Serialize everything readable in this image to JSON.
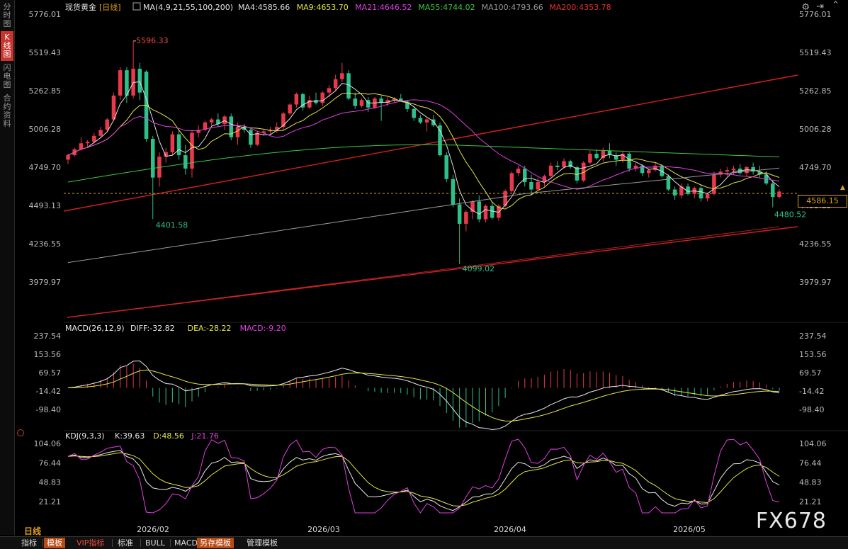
{
  "sidebar": {
    "tabs": [
      "分时图",
      "K线图",
      "闪电图",
      "合约资料"
    ]
  },
  "header": {
    "symbol": "现货黄金",
    "period": "[日线]",
    "ma_label": "MA(4,9,21,55,100,200)",
    "ma_values": [
      {
        "label": "MA4:4585.66",
        "color": "#e0e0e0"
      },
      {
        "label": "MA9:4653.70",
        "color": "#e6e645"
      },
      {
        "label": "MA21:4646.52",
        "color": "#e040e0"
      },
      {
        "label": "MA55:4744.02",
        "color": "#3ec83e"
      },
      {
        "label": "MA100:4793.66",
        "color": "#9a9a9a"
      },
      {
        "label": "MA200:4353.78",
        "color": "#e83030"
      }
    ]
  },
  "price_axis": [
    "5776.01",
    "5519.43",
    "5262.85",
    "5006.28",
    "4749.70",
    "4493.13",
    "4236.55",
    "3979.97"
  ],
  "current_price": "4586.15",
  "annotations": {
    "high": "5596.33",
    "low1": "4401.58",
    "low2": "4099.02",
    "low3": "4480.52"
  },
  "macd": {
    "title": "MACD(26,12,9)",
    "values": [
      {
        "label": "DIFF:-32.82",
        "color": "#e8e8e8"
      },
      {
        "label": "DEA:-28.22",
        "color": "#e6e645"
      },
      {
        "label": "MACD:-9.20",
        "color": "#e040e0"
      }
    ],
    "axis": [
      "237.54",
      "153.56",
      "69.57",
      "-14.42",
      "-98.40"
    ]
  },
  "kdj": {
    "title": "KDJ(9,3,3)",
    "values": [
      {
        "label": "K:39.63",
        "color": "#e8e8e8"
      },
      {
        "label": "D:48.56",
        "color": "#e6e645"
      },
      {
        "label": "J:21.76",
        "color": "#e040e0"
      }
    ],
    "axis": [
      "104.06",
      "76.44",
      "48.83",
      "21.21"
    ]
  },
  "date_axis": [
    "2026/02",
    "2026/03",
    "2026/04",
    "2026/05"
  ],
  "timeframe": "日线",
  "watermark": "FX678",
  "toolbar": [
    "指标",
    "模板",
    "VIP指标",
    "标准",
    "BULL",
    "MACD",
    "另存模板",
    "管理模板"
  ],
  "icons": {
    "settings": "gear-icon",
    "expand": "expand-icon",
    "collapse": "collapse-icon"
  },
  "colors": {
    "up": "#e83a4a",
    "down": "#2ec08a",
    "background": "#000000",
    "accent": "#e0a020"
  },
  "chart_data": {
    "type": "candlestick",
    "y_range": [
      3900,
      5800
    ],
    "candles": [
      [
        4800,
        4840,
        4770,
        4830
      ],
      [
        4830,
        4880,
        4820,
        4870
      ],
      [
        4870,
        4950,
        4860,
        4910
      ],
      [
        4910,
        4930,
        4880,
        4920
      ],
      [
        4920,
        4980,
        4910,
        4960
      ],
      [
        4960,
        5020,
        4950,
        5000
      ],
      [
        5000,
        5080,
        4990,
        5070
      ],
      [
        5070,
        5250,
        5060,
        5230
      ],
      [
        5230,
        5420,
        5200,
        5400
      ],
      [
        5400,
        5420,
        5180,
        5230
      ],
      [
        5230,
        5596.33,
        5210,
        5410
      ],
      [
        5410,
        5450,
        5200,
        5250
      ],
      [
        5390,
        5400,
        4920,
        4940
      ],
      [
        4940,
        4960,
        4401.58,
        4680
      ],
      [
        4680,
        4850,
        4620,
        4820
      ],
      [
        4820,
        4880,
        4780,
        4850
      ],
      [
        4850,
        4990,
        4830,
        4970
      ],
      [
        4970,
        5000,
        4800,
        4830
      ],
      [
        4830,
        4900,
        4700,
        4740
      ],
      [
        4740,
        5000,
        4680,
        4980
      ],
      [
        4980,
        5030,
        4950,
        5000
      ],
      [
        5000,
        5060,
        4990,
        5050
      ],
      [
        5050,
        5080,
        5030,
        5070
      ],
      [
        5070,
        5110,
        5020,
        5040
      ],
      [
        5040,
        5100,
        5000,
        5090
      ],
      [
        5090,
        5110,
        4930,
        4950
      ],
      [
        4950,
        5050,
        4900,
        5020
      ],
      [
        5020,
        5040,
        4980,
        5000
      ],
      [
        5000,
        5010,
        4880,
        4900
      ],
      [
        4900,
        4990,
        4890,
        4980
      ],
      [
        4980,
        5000,
        4960,
        4990
      ],
      [
        4990,
        5020,
        4970,
        5000
      ],
      [
        5000,
        5050,
        4980,
        5020
      ],
      [
        5020,
        5120,
        5000,
        5110
      ],
      [
        5110,
        5180,
        5100,
        5170
      ],
      [
        5170,
        5250,
        5150,
        5240
      ],
      [
        5240,
        5250,
        5130,
        5150
      ],
      [
        5150,
        5230,
        5140,
        5200
      ],
      [
        5200,
        5250,
        5170,
        5180
      ],
      [
        5180,
        5260,
        5160,
        5250
      ],
      [
        5250,
        5300,
        5220,
        5280
      ],
      [
        5280,
        5370,
        5260,
        5340
      ],
      [
        5340,
        5450,
        5320,
        5380
      ],
      [
        5380,
        5400,
        5200,
        5210
      ],
      [
        5210,
        5250,
        5140,
        5160
      ],
      [
        5160,
        5210,
        5150,
        5200
      ],
      [
        5200,
        5220,
        5120,
        5150
      ],
      [
        5150,
        5220,
        5140,
        5210
      ],
      [
        5210,
        5230,
        5060,
        5180
      ],
      [
        5180,
        5220,
        5160,
        5200
      ],
      [
        5200,
        5220,
        5180,
        5210
      ],
      [
        5210,
        5240,
        5190,
        5190
      ],
      [
        5190,
        5200,
        5120,
        5140
      ],
      [
        5140,
        5150,
        5060,
        5080
      ],
      [
        5080,
        5100,
        5040,
        5050
      ],
      [
        5050,
        5080,
        4990,
        5070
      ],
      [
        5070,
        5100,
        5020,
        5030
      ],
      [
        5030,
        5050,
        4820,
        4830
      ],
      [
        4830,
        4850,
        4650,
        4670
      ],
      [
        4670,
        4700,
        4480,
        4500
      ],
      [
        4500,
        4540,
        4099.02,
        4370
      ],
      [
        4370,
        4460,
        4320,
        4450
      ],
      [
        4450,
        4530,
        4400,
        4520
      ],
      [
        4520,
        4560,
        4380,
        4400
      ],
      [
        4400,
        4500,
        4380,
        4490
      ],
      [
        4490,
        4520,
        4400,
        4410
      ],
      [
        4410,
        4500,
        4390,
        4490
      ],
      [
        4490,
        4600,
        4480,
        4590
      ],
      [
        4590,
        4720,
        4580,
        4710
      ],
      [
        4710,
        4760,
        4690,
        4740
      ],
      [
        4740,
        4760,
        4620,
        4650
      ],
      [
        4650,
        4700,
        4560,
        4600
      ],
      [
        4600,
        4680,
        4590,
        4650
      ],
      [
        4650,
        4700,
        4620,
        4690
      ],
      [
        4690,
        4780,
        4680,
        4760
      ],
      [
        4760,
        4790,
        4730,
        4750
      ],
      [
        4750,
        4810,
        4740,
        4790
      ],
      [
        4790,
        4800,
        4740,
        4750
      ],
      [
        4750,
        4760,
        4640,
        4660
      ],
      [
        4660,
        4790,
        4650,
        4780
      ],
      [
        4780,
        4860,
        4770,
        4840
      ],
      [
        4840,
        4870,
        4800,
        4810
      ],
      [
        4810,
        4880,
        4790,
        4860
      ],
      [
        4860,
        4910,
        4810,
        4830
      ],
      [
        4830,
        4850,
        4760,
        4800
      ],
      [
        4800,
        4860,
        4780,
        4840
      ],
      [
        4840,
        4850,
        4720,
        4740
      ],
      [
        4740,
        4780,
        4720,
        4760
      ],
      [
        4760,
        4770,
        4690,
        4710
      ],
      [
        4710,
        4740,
        4680,
        4730
      ],
      [
        4730,
        4780,
        4720,
        4760
      ],
      [
        4760,
        4770,
        4680,
        4690
      ],
      [
        4690,
        4700,
        4590,
        4600
      ],
      [
        4600,
        4620,
        4530,
        4560
      ],
      [
        4560,
        4640,
        4540,
        4620
      ],
      [
        4620,
        4640,
        4560,
        4570
      ],
      [
        4570,
        4620,
        4540,
        4610
      ],
      [
        4610,
        4630,
        4520,
        4540
      ],
      [
        4540,
        4580,
        4520,
        4570
      ],
      [
        4570,
        4720,
        4560,
        4700
      ],
      [
        4700,
        4740,
        4680,
        4720
      ],
      [
        4720,
        4750,
        4690,
        4730
      ],
      [
        4730,
        4760,
        4700,
        4740
      ],
      [
        4740,
        4770,
        4700,
        4710
      ],
      [
        4710,
        4760,
        4690,
        4750
      ],
      [
        4750,
        4780,
        4700,
        4720
      ],
      [
        4720,
        4760,
        4680,
        4700
      ],
      [
        4700,
        4720,
        4630,
        4640
      ],
      [
        4640,
        4660,
        4480.52,
        4550
      ],
      [
        4550,
        4600,
        4540,
        4586.15
      ]
    ]
  }
}
